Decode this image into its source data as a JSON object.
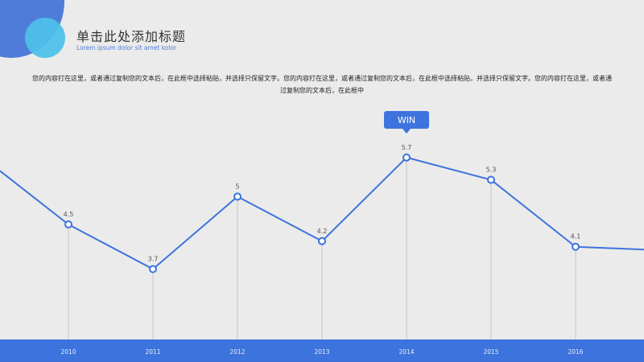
{
  "header": {
    "title": "单击此处添加标题",
    "subtitle": "Lorem ipsum dolor sit amet kolor"
  },
  "description": {
    "text": "您的内容打在这里，或者通过复制您的文本后，在此框中选择粘贴，并选择只保留文字。您的内容打在这里，或者通过复制您的文本后，在此框中选择粘贴，并选择只保留文字。您的内容打在这里，或者通过复制您的文本后，在此框中"
  },
  "callout": {
    "label": "WIN"
  },
  "colors": {
    "accent": "#3d73dc",
    "line": "#3d73dc",
    "deco_light": "#4ec1ea"
  },
  "chart_data": {
    "type": "line",
    "title": "",
    "xlabel": "",
    "ylabel": "",
    "categories": [
      "2010",
      "2011",
      "2012",
      "2013",
      "2014",
      "2015",
      "2016"
    ],
    "series": [
      {
        "values": [
          4.5,
          3.7,
          5,
          4.2,
          5.7,
          5.3,
          4.1
        ]
      }
    ],
    "annotation": {
      "category": "2014",
      "label": "WIN"
    },
    "ylim": [
      0,
      7
    ],
    "grid": false,
    "legend": "none"
  }
}
